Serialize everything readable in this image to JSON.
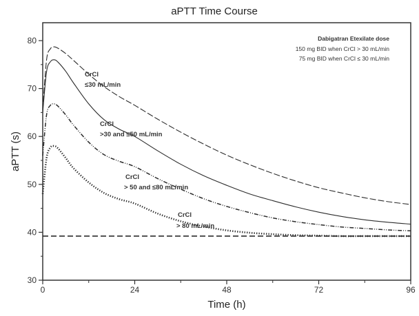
{
  "chart_data": {
    "type": "line",
    "title": "aPTT Time Course",
    "xlabel": "Time (h)",
    "ylabel": "aPTT (s)",
    "xlim": [
      0,
      96
    ],
    "ylim": [
      30,
      84
    ],
    "x_ticks": [
      0,
      24,
      48,
      72,
      96
    ],
    "x_minor_ticks": [
      12,
      36,
      60,
      84
    ],
    "y_ticks": [
      30,
      40,
      50,
      60,
      70,
      80
    ],
    "y_minor_ticks": [
      35,
      45,
      55,
      65,
      75
    ],
    "grid": false,
    "legend": {
      "placement": "top-right",
      "title": "Dabigatran Etexilate dose",
      "lines": [
        "150 mg BID when CrCl > 30 mL/min",
        "75 mg BID when CrCl ≤ 30 mL/min"
      ]
    },
    "series": [
      {
        "name": "CrCl ≤30 mL/min",
        "style": "long-dash",
        "annotation": [
          "CrCl",
          "≤30 mL/min"
        ],
        "x": [
          0,
          1,
          2,
          3,
          4,
          6,
          8,
          12,
          16,
          20,
          24,
          30,
          36,
          42,
          48,
          54,
          60,
          66,
          72,
          78,
          84,
          90,
          96
        ],
        "y": [
          65.5,
          76.0,
          78.3,
          78.7,
          78.4,
          77.3,
          75.9,
          73.0,
          70.4,
          68.3,
          66.5,
          63.6,
          60.9,
          58.4,
          56.1,
          54.1,
          52.3,
          50.7,
          49.3,
          48.2,
          47.2,
          46.4,
          45.8
        ]
      },
      {
        "name": "CrCl >30 and ≤50 mL/min",
        "style": "solid",
        "annotation": [
          "CrCl",
          ">30 and  ≤50 mL/min"
        ],
        "x": [
          0,
          1,
          2,
          3,
          4,
          6,
          8,
          12,
          16,
          20,
          24,
          30,
          36,
          42,
          48,
          54,
          60,
          66,
          72,
          78,
          84,
          90,
          96
        ],
        "y": [
          65.0,
          73.5,
          75.6,
          76.0,
          75.5,
          73.6,
          71.2,
          66.8,
          63.5,
          61.5,
          60.0,
          57.0,
          54.2,
          51.8,
          49.8,
          48.0,
          46.6,
          45.3,
          44.2,
          43.3,
          42.6,
          42.1,
          41.7
        ]
      },
      {
        "name": "CrCl >50 and ≤80 mL/min",
        "style": "dash-dot-dot",
        "annotation": [
          "CrCl",
          "> 50 and  ≤80 mL/min"
        ],
        "x": [
          0,
          1,
          2,
          3,
          4,
          6,
          8,
          12,
          16,
          20,
          24,
          30,
          36,
          42,
          48,
          54,
          60,
          66,
          72,
          78,
          84,
          90,
          96
        ],
        "y": [
          56.0,
          64.5,
          66.5,
          66.8,
          66.3,
          64.5,
          62.4,
          58.8,
          56.2,
          54.8,
          53.7,
          51.2,
          49.0,
          47.0,
          45.4,
          44.1,
          43.0,
          42.2,
          41.6,
          41.1,
          40.8,
          40.5,
          40.3
        ]
      },
      {
        "name": "CrCl >80 mL/min",
        "style": "dotted",
        "annotation": [
          "CrCl",
          "> 80 mL/min"
        ],
        "x": [
          0,
          1,
          2,
          3,
          4,
          6,
          8,
          12,
          16,
          20,
          24,
          30,
          36,
          42,
          48,
          54,
          60,
          66,
          72,
          78,
          84,
          90,
          96
        ],
        "y": [
          48.0,
          55.5,
          57.7,
          58.0,
          57.5,
          55.5,
          53.4,
          50.4,
          48.2,
          46.9,
          46.0,
          43.9,
          42.3,
          41.2,
          40.4,
          39.9,
          39.6,
          39.4,
          39.3,
          39.2,
          39.2,
          39.2,
          39.2
        ]
      },
      {
        "name": "Baseline",
        "style": "dashed-baseline",
        "annotation": null,
        "x": [
          0,
          96
        ],
        "y": [
          39.2,
          39.2
        ]
      }
    ]
  }
}
